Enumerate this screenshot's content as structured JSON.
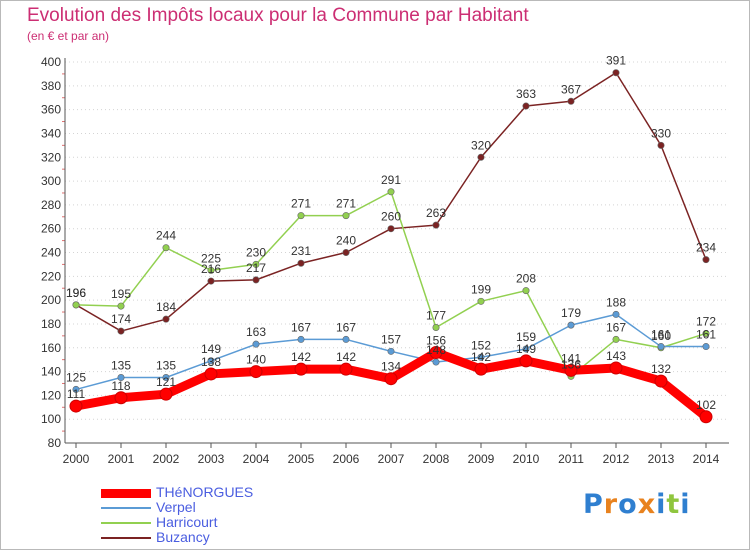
{
  "title": "Evolution des Impôts locaux pour la Commune par Habitant",
  "subtitle": "(en € et par an)",
  "chart_data": {
    "type": "line",
    "title": "Evolution des Impôts locaux pour la Commune par Habitant",
    "ylabel": "(en € et par an)",
    "xlabel": "",
    "categories": [
      "2000",
      "2001",
      "2002",
      "2003",
      "2004",
      "2005",
      "2006",
      "2007",
      "2008",
      "2009",
      "2010",
      "2011",
      "2012",
      "2013",
      "2014"
    ],
    "ylim": [
      80,
      400
    ],
    "yticks": [
      80,
      100,
      120,
      140,
      160,
      180,
      200,
      220,
      240,
      260,
      280,
      300,
      320,
      340,
      360,
      380,
      400
    ],
    "grid": "dotted-horizontal",
    "series": [
      {
        "name": "THéNORGUES",
        "color": "#ff0000",
        "values": [
          111,
          118,
          121,
          138,
          140,
          142,
          142,
          134,
          156,
          142,
          149,
          141,
          143,
          132,
          102
        ]
      },
      {
        "name": "Verpel",
        "color": "#5b9bd5",
        "values": [
          125,
          135,
          135,
          149,
          163,
          167,
          167,
          157,
          148,
          152,
          159,
          179,
          188,
          161,
          161
        ]
      },
      {
        "name": "Harricourt",
        "color": "#92d050",
        "values": [
          196,
          195,
          244,
          225,
          230,
          271,
          271,
          291,
          177,
          199,
          208,
          136,
          167,
          160,
          172
        ]
      },
      {
        "name": "Buzancy",
        "color": "#7b2323",
        "values": [
          196,
          174,
          184,
          216,
          217,
          231,
          240,
          260,
          263,
          320,
          363,
          367,
          391,
          330,
          234
        ]
      }
    ]
  },
  "logo": {
    "letters": [
      "P",
      "r",
      "o",
      "x",
      "i",
      "t",
      "i"
    ],
    "colors": [
      "#2f7fd0",
      "#e8821e",
      "#2f7fd0",
      "#e8821e",
      "#2f7fd0",
      "#8fc63e",
      "#2f7fd0"
    ]
  }
}
